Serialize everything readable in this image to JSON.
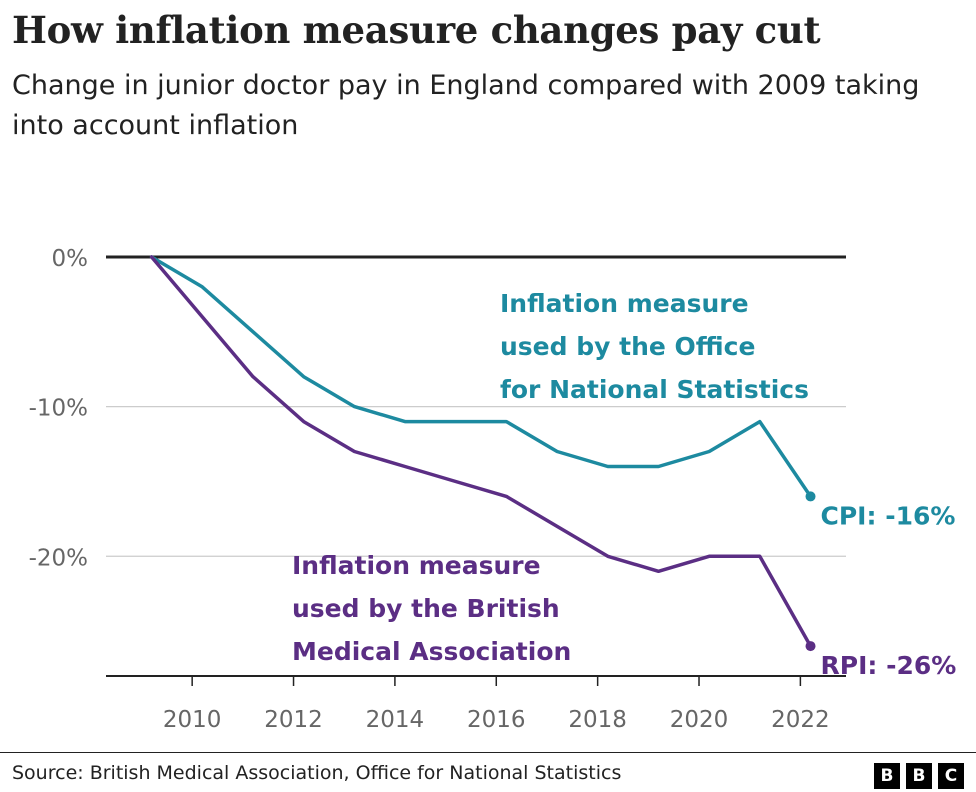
{
  "title": "How inflation measure changes pay cut",
  "subtitle": "Change in junior doctor pay in England compared with 2009 taking into account inflation",
  "source": "Source: British Medical Association, Office for National Statistics",
  "logo": [
    "B",
    "B",
    "C"
  ],
  "chart_data": {
    "type": "line",
    "ylim": [
      -28,
      0
    ],
    "xlim": [
      2008.3,
      2022.9
    ],
    "y_ticks": [
      0,
      -10,
      -20
    ],
    "y_tick_labels": [
      "0%",
      "-10%",
      "-20%"
    ],
    "x_ticks": [
      2010,
      2012,
      2014,
      2016,
      2018,
      2020,
      2022
    ],
    "x_tick_labels": [
      "2010",
      "2012",
      "2014",
      "2016",
      "2018",
      "2020",
      "2022"
    ],
    "grid": true,
    "series": [
      {
        "key": "cpi",
        "color": "#1d8aa0",
        "annotation": [
          "Inflation measure",
          "used by the Office",
          "for National Statistics"
        ],
        "end_label": "CPI: -16%",
        "x": [
          2009.2,
          2010.2,
          2011.2,
          2012.2,
          2013.2,
          2014.2,
          2015.2,
          2016.2,
          2017.2,
          2018.2,
          2019.2,
          2020.2,
          2021.2,
          2022.2
        ],
        "values": [
          0,
          -2,
          -5,
          -8,
          -10,
          -11,
          -11,
          -11,
          -13,
          -14,
          -14,
          -13,
          -11,
          -16
        ]
      },
      {
        "key": "rpi",
        "color": "#5b2e84",
        "annotation": [
          "Inflation measure",
          "used by the British",
          "Medical Association"
        ],
        "end_label": "RPI: -26%",
        "x": [
          2009.2,
          2010.2,
          2011.2,
          2012.2,
          2013.2,
          2014.2,
          2015.2,
          2016.2,
          2017.2,
          2018.2,
          2019.2,
          2020.2,
          2021.2,
          2022.2
        ],
        "values": [
          0,
          -4,
          -8,
          -11,
          -13,
          -14,
          -15,
          -16,
          -18,
          -20,
          -21,
          -20,
          -20,
          -26
        ]
      }
    ]
  }
}
